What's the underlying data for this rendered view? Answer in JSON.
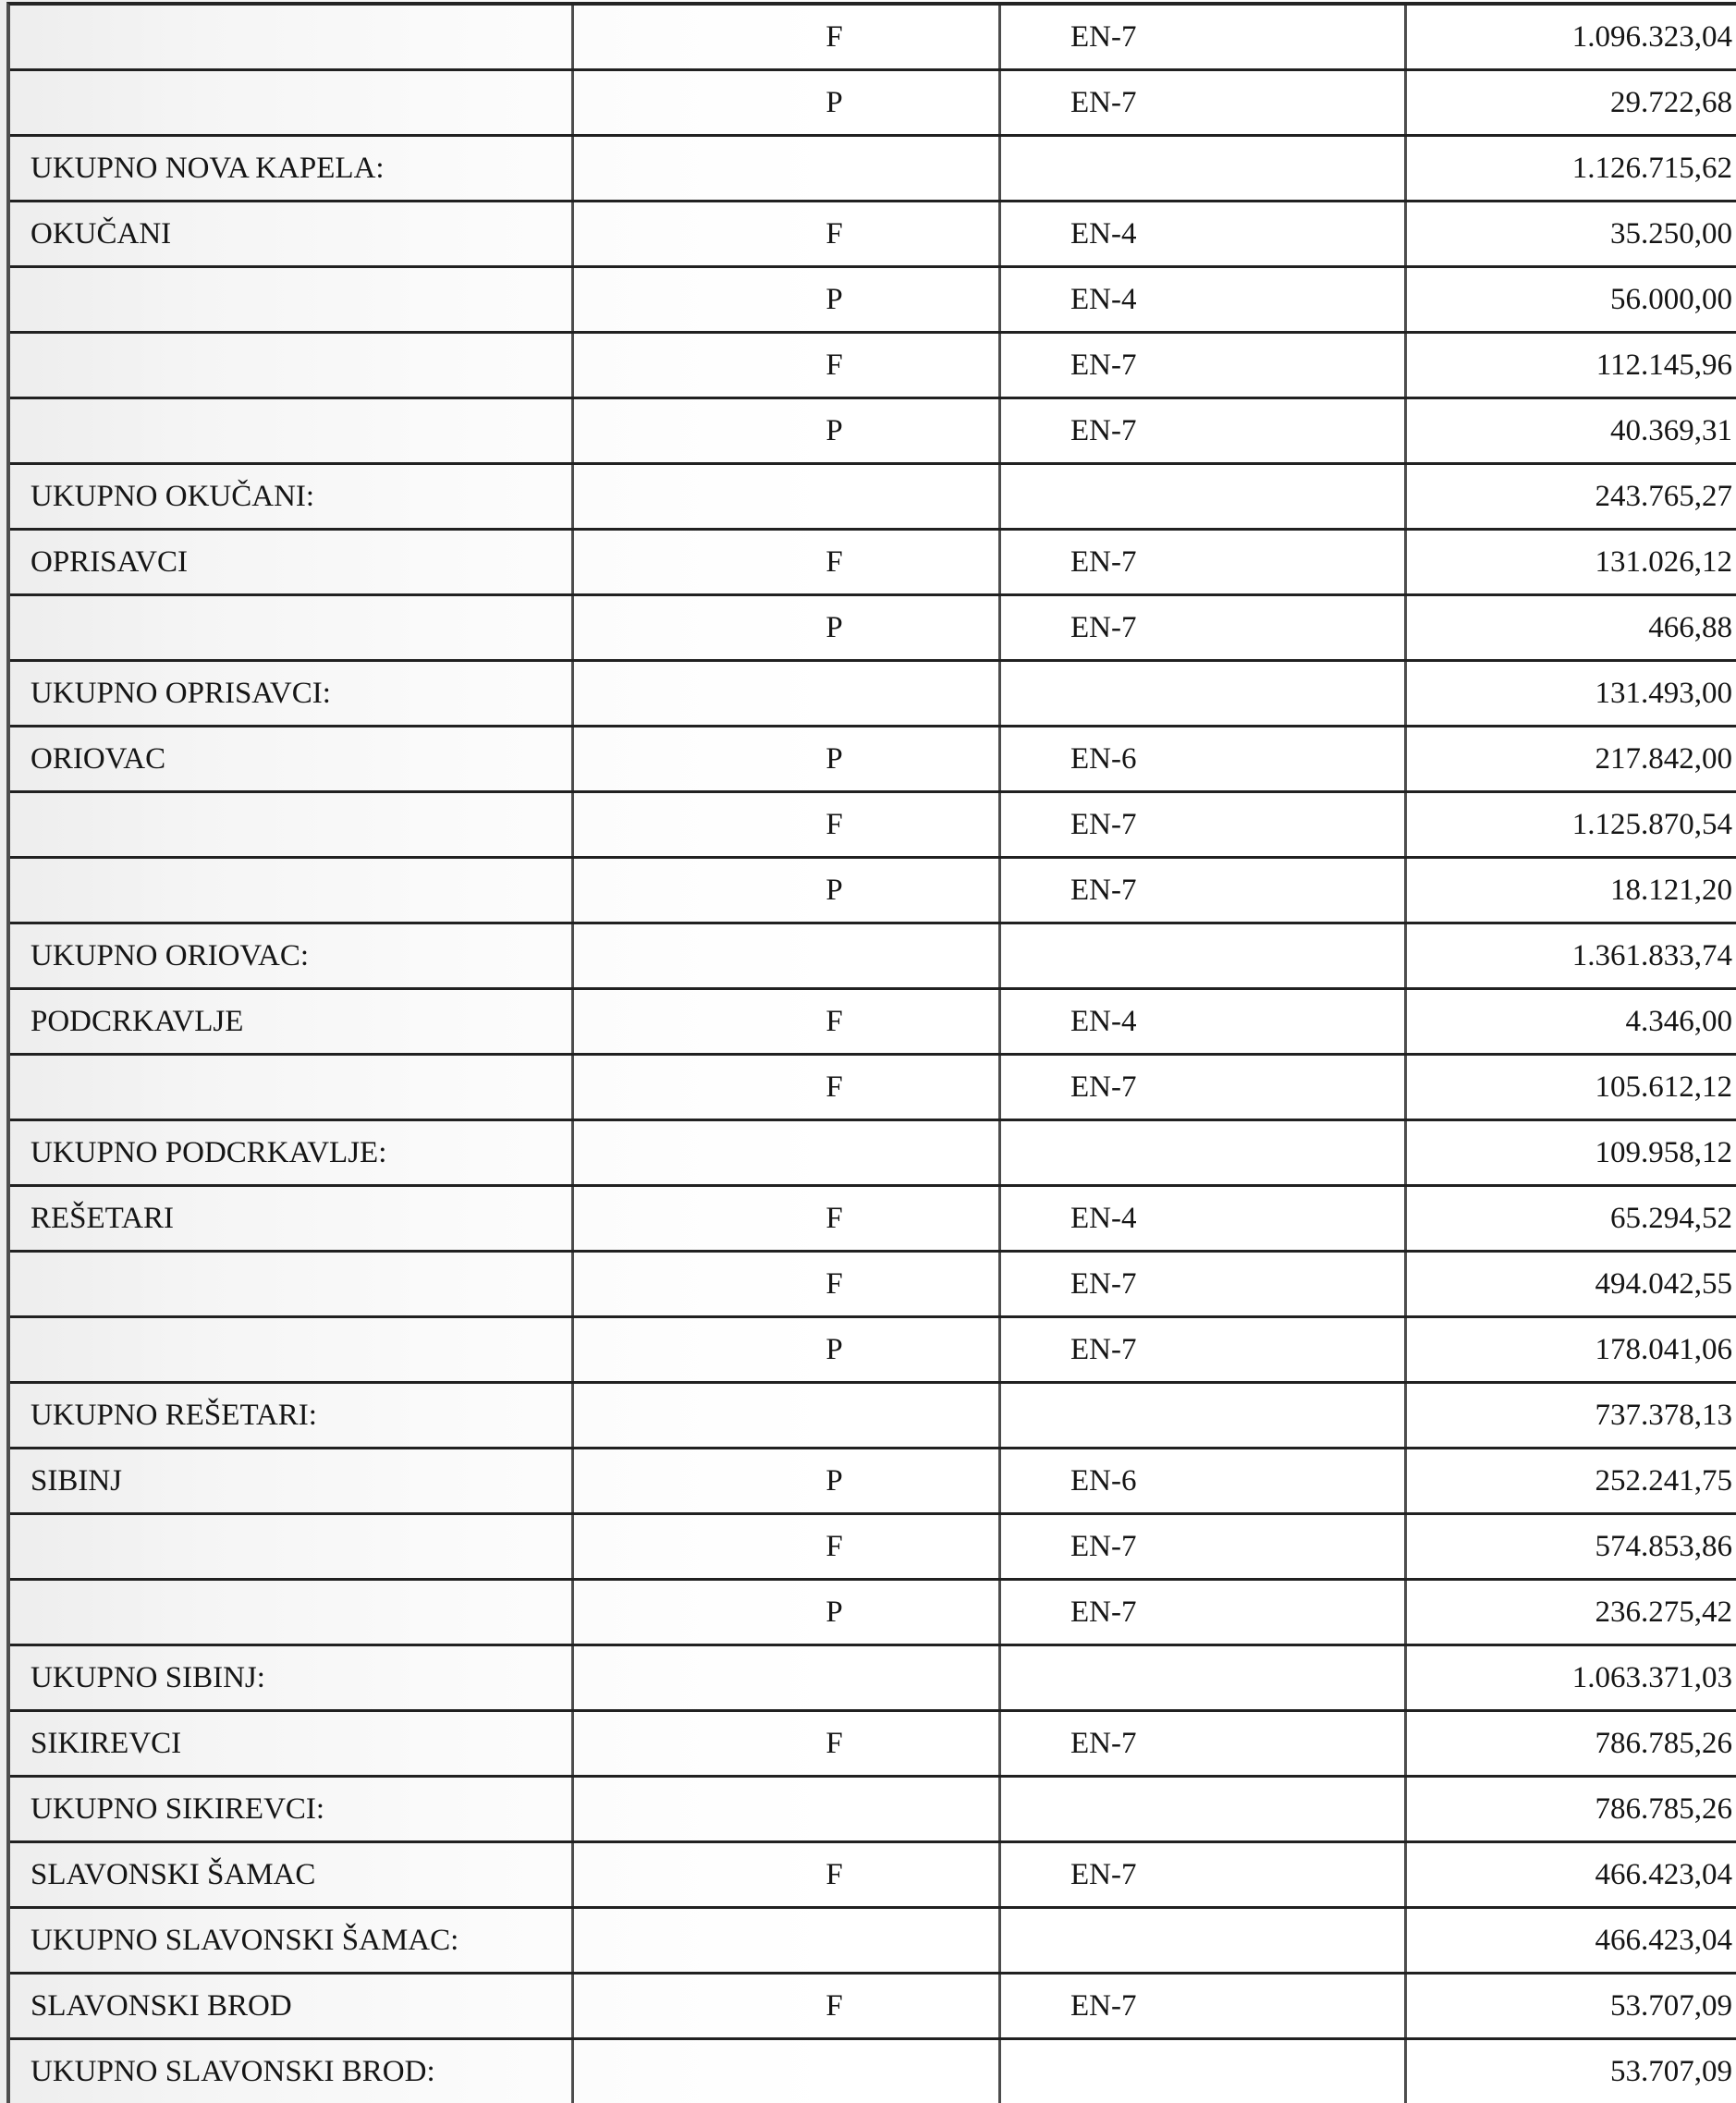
{
  "document": {
    "kind": "scanned-table-page",
    "language": "hr",
    "text_color": "#151515",
    "border_color_horizontal": "#212121",
    "border_color_vertical": "#4d4d4d"
  },
  "table": {
    "columns": [
      "municipality",
      "fp_code",
      "en_code",
      "amount"
    ],
    "rows": [
      {
        "name": "",
        "fp": "F",
        "en": "EN-7",
        "amount": "1.096.323,04",
        "is_total": false
      },
      {
        "name": "",
        "fp": "P",
        "en": "EN-7",
        "amount": "29.722,68",
        "is_total": false
      },
      {
        "name": "UKUPNO NOVA KAPELA:",
        "fp": "",
        "en": "",
        "amount": "1.126.715,62",
        "is_total": true
      },
      {
        "name": "OKUČANI",
        "fp": "F",
        "en": "EN-4",
        "amount": "35.250,00",
        "is_total": false
      },
      {
        "name": "",
        "fp": "P",
        "en": "EN-4",
        "amount": "56.000,00",
        "is_total": false
      },
      {
        "name": "",
        "fp": "F",
        "en": "EN-7",
        "amount": "112.145,96",
        "is_total": false
      },
      {
        "name": "",
        "fp": "P",
        "en": "EN-7",
        "amount": "40.369,31",
        "is_total": false
      },
      {
        "name": "UKUPNO OKUČANI:",
        "fp": "",
        "en": "",
        "amount": "243.765,27",
        "is_total": true
      },
      {
        "name": "OPRISAVCI",
        "fp": "F",
        "en": "EN-7",
        "amount": "131.026,12",
        "is_total": false
      },
      {
        "name": "",
        "fp": "P",
        "en": "EN-7",
        "amount": "466,88",
        "is_total": false
      },
      {
        "name": "UKUPNO OPRISAVCI:",
        "fp": "",
        "en": "",
        "amount": "131.493,00",
        "is_total": true
      },
      {
        "name": "ORIOVAC",
        "fp": "P",
        "en": "EN-6",
        "amount": "217.842,00",
        "is_total": false
      },
      {
        "name": "",
        "fp": "F",
        "en": "EN-7",
        "amount": "1.125.870,54",
        "is_total": false
      },
      {
        "name": "",
        "fp": "P",
        "en": "EN-7",
        "amount": "18.121,20",
        "is_total": false
      },
      {
        "name": "UKUPNO ORIOVAC:",
        "fp": "",
        "en": "",
        "amount": "1.361.833,74",
        "is_total": true
      },
      {
        "name": "PODCRKAVLJE",
        "fp": "F",
        "en": "EN-4",
        "amount": "4.346,00",
        "is_total": false
      },
      {
        "name": "",
        "fp": "F",
        "en": "EN-7",
        "amount": "105.612,12",
        "is_total": false
      },
      {
        "name": "UKUPNO PODCRKAVLJE:",
        "fp": "",
        "en": "",
        "amount": "109.958,12",
        "is_total": true
      },
      {
        "name": "REŠETARI",
        "fp": "F",
        "en": "EN-4",
        "amount": "65.294,52",
        "is_total": false
      },
      {
        "name": "",
        "fp": "F",
        "en": "EN-7",
        "amount": "494.042,55",
        "is_total": false
      },
      {
        "name": "",
        "fp": "P",
        "en": "EN-7",
        "amount": "178.041,06",
        "is_total": false
      },
      {
        "name": "UKUPNO REŠETARI:",
        "fp": "",
        "en": "",
        "amount": "737.378,13",
        "is_total": true
      },
      {
        "name": "SIBINJ",
        "fp": "P",
        "en": "EN-6",
        "amount": "252.241,75",
        "is_total": false
      },
      {
        "name": "",
        "fp": "F",
        "en": "EN-7",
        "amount": "574.853,86",
        "is_total": false
      },
      {
        "name": "",
        "fp": "P",
        "en": "EN-7",
        "amount": "236.275,42",
        "is_total": false
      },
      {
        "name": "UKUPNO SIBINJ:",
        "fp": "",
        "en": "",
        "amount": "1.063.371,03",
        "is_total": true
      },
      {
        "name": "SIKIREVCI",
        "fp": "F",
        "en": "EN-7",
        "amount": "786.785,26",
        "is_total": false
      },
      {
        "name": "UKUPNO SIKIREVCI:",
        "fp": "",
        "en": "",
        "amount": "786.785,26",
        "is_total": true
      },
      {
        "name": "SLAVONSKI ŠAMAC",
        "fp": "F",
        "en": "EN-7",
        "amount": "466.423,04",
        "is_total": false
      },
      {
        "name": "UKUPNO SLAVONSKI ŠAMAC:",
        "fp": "",
        "en": "",
        "amount": "466.423,04",
        "is_total": true
      },
      {
        "name": "SLAVONSKI BROD",
        "fp": "F",
        "en": "EN-7",
        "amount": "53.707,09",
        "is_total": false
      },
      {
        "name": "UKUPNO SLAVONSKI BROD:",
        "fp": "",
        "en": "",
        "amount": "53.707,09",
        "is_total": true
      }
    ]
  }
}
